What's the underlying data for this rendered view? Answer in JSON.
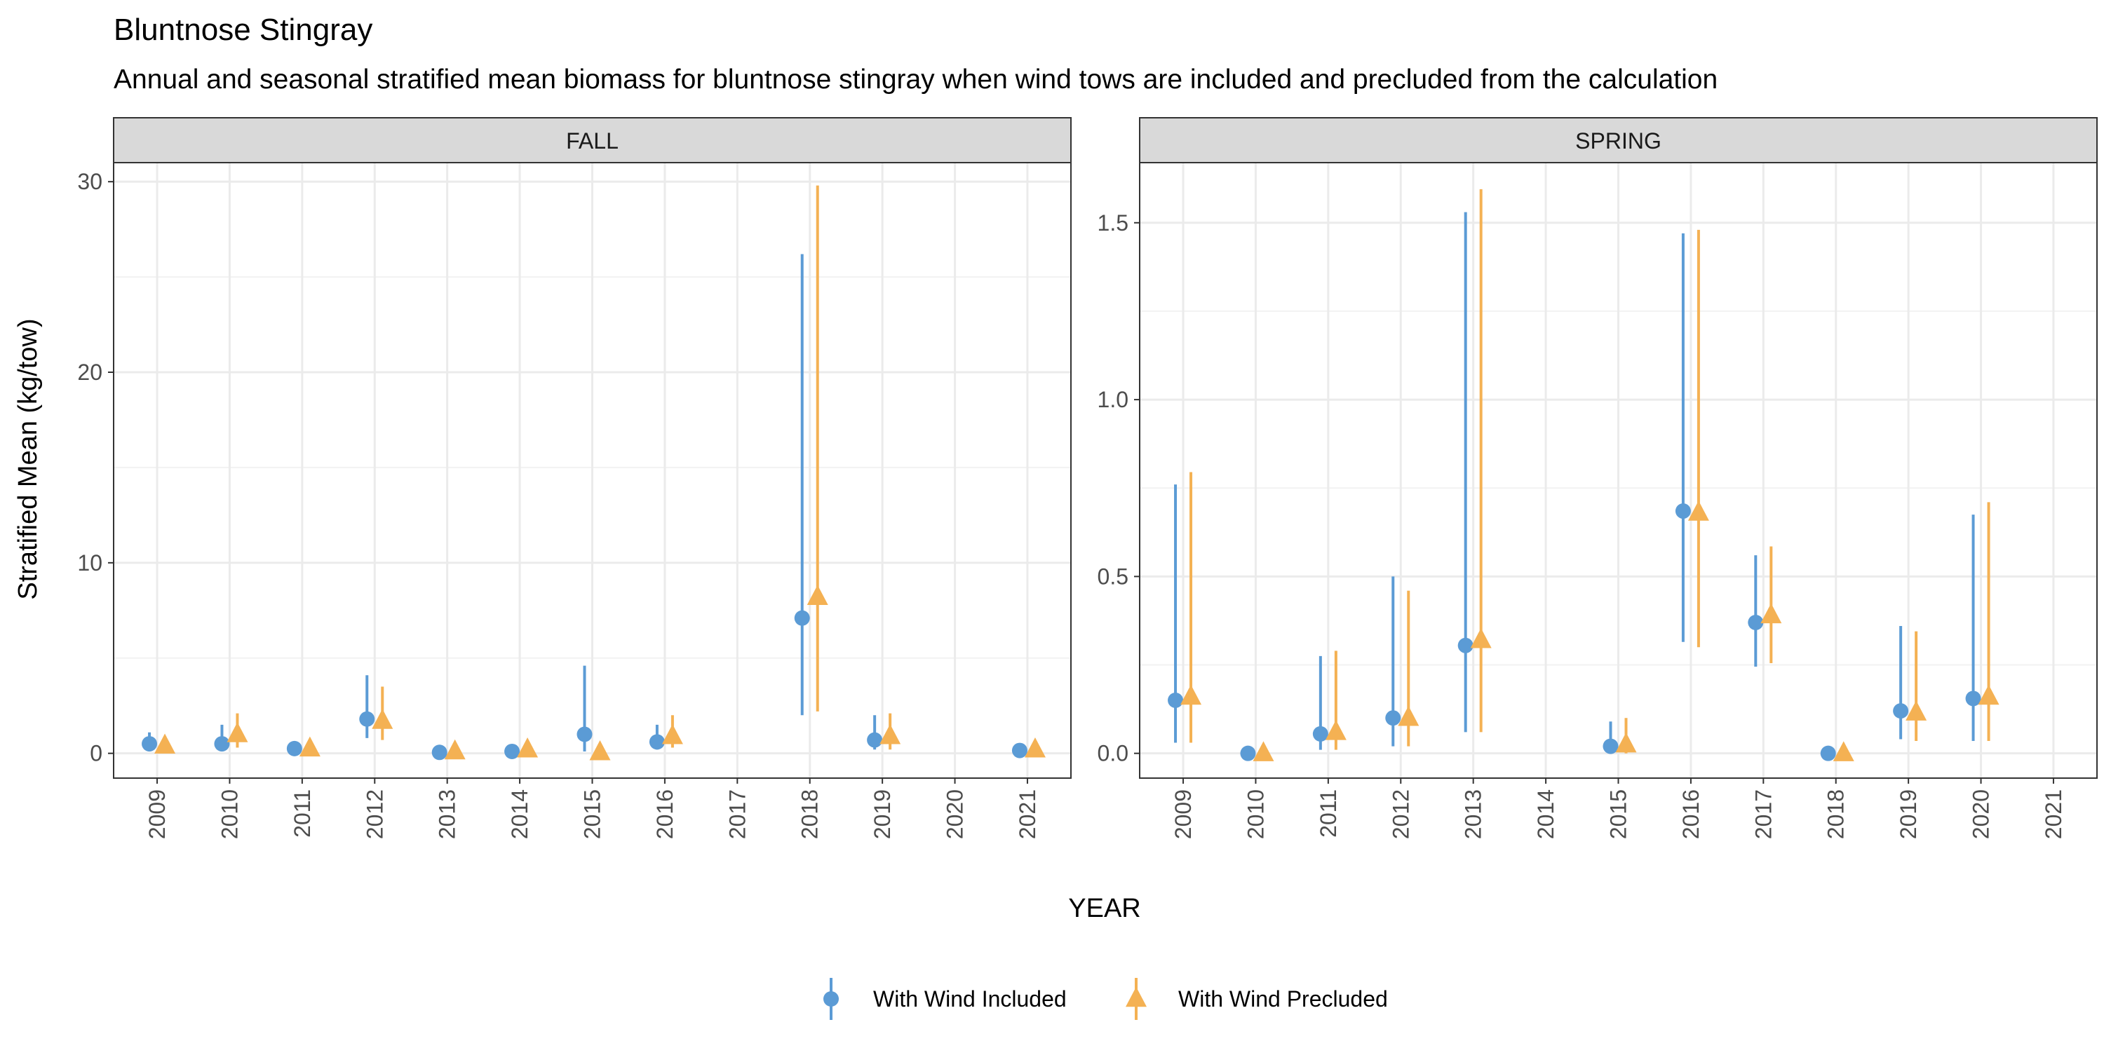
{
  "title": "Bluntnose Stingray",
  "subtitle": "Annual and seasonal stratified mean biomass for bluntnose stingray when wind tows are included and precluded from the calculation",
  "xlabel": "YEAR",
  "ylabel": "Stratified Mean (kg/tow)",
  "colors": {
    "included": "#5B9BD5",
    "precluded": "#F4B153",
    "strip_bg": "#D9D9D9",
    "grid": "#EBEBEB"
  },
  "legend": {
    "position": "bottom",
    "items": [
      {
        "label": "With Wind Included",
        "shape": "circle",
        "color": "#5B9BD5"
      },
      {
        "label": "With Wind Precluded",
        "shape": "triangle",
        "color": "#F4B153"
      }
    ]
  },
  "chart_data": {
    "type": "scatter",
    "years": [
      "2009",
      "2010",
      "2011",
      "2012",
      "2013",
      "2014",
      "2015",
      "2016",
      "2017",
      "2018",
      "2019",
      "2020",
      "2021"
    ],
    "panels": [
      {
        "strip": "FALL",
        "ylim": [
          -1.3,
          31.0
        ],
        "yticks": [
          0,
          10,
          20,
          30
        ],
        "series": [
          {
            "name": "With Wind Included",
            "points": [
              {
                "x": "2009",
                "y": 0.5,
                "lo": 0.1,
                "hi": 1.1
              },
              {
                "x": "2010",
                "y": 0.5,
                "lo": 0.1,
                "hi": 1.5
              },
              {
                "x": "2011",
                "y": 0.25,
                "lo": 0.1,
                "hi": 0.4
              },
              {
                "x": "2012",
                "y": 1.8,
                "lo": 0.8,
                "hi": 4.1
              },
              {
                "x": "2013",
                "y": 0.05,
                "lo": 0.0,
                "hi": 0.1
              },
              {
                "x": "2014",
                "y": 0.1,
                "lo": 0.0,
                "hi": 0.3
              },
              {
                "x": "2015",
                "y": 1.0,
                "lo": 0.1,
                "hi": 4.6
              },
              {
                "x": "2016",
                "y": 0.6,
                "lo": 0.2,
                "hi": 1.5
              },
              {
                "x": "2018",
                "y": 7.1,
                "lo": 2.0,
                "hi": 26.2
              },
              {
                "x": "2019",
                "y": 0.7,
                "lo": 0.2,
                "hi": 2.0
              },
              {
                "x": "2021",
                "y": 0.15,
                "lo": 0.05,
                "hi": 0.3
              }
            ]
          },
          {
            "name": "With Wind Precluded",
            "points": [
              {
                "x": "2009",
                "y": 0.4,
                "lo": 0.1,
                "hi": 0.9
              },
              {
                "x": "2010",
                "y": 1.0,
                "lo": 0.3,
                "hi": 2.1
              },
              {
                "x": "2011",
                "y": 0.25,
                "lo": 0.1,
                "hi": 0.4
              },
              {
                "x": "2012",
                "y": 1.7,
                "lo": 0.7,
                "hi": 3.5
              },
              {
                "x": "2013",
                "y": 0.1,
                "lo": 0.0,
                "hi": 0.2
              },
              {
                "x": "2014",
                "y": 0.2,
                "lo": 0.0,
                "hi": 0.4
              },
              {
                "x": "2015",
                "y": 0.05,
                "lo": 0.0,
                "hi": 0.2
              },
              {
                "x": "2016",
                "y": 0.9,
                "lo": 0.3,
                "hi": 2.0
              },
              {
                "x": "2018",
                "y": 8.2,
                "lo": 2.2,
                "hi": 29.8
              },
              {
                "x": "2019",
                "y": 0.9,
                "lo": 0.2,
                "hi": 2.1
              },
              {
                "x": "2021",
                "y": 0.2,
                "lo": 0.05,
                "hi": 0.4
              }
            ]
          }
        ]
      },
      {
        "strip": "SPRING",
        "ylim": [
          -0.07,
          1.67
        ],
        "yticks": [
          0.0,
          0.5,
          1.0,
          1.5
        ],
        "ytick_labels": [
          "0.0",
          "0.5",
          "1.0",
          "1.5"
        ],
        "series": [
          {
            "name": "With Wind Included",
            "points": [
              {
                "x": "2009",
                "y": 0.15,
                "lo": 0.03,
                "hi": 0.76
              },
              {
                "x": "2010",
                "y": 0.0,
                "lo": 0.0,
                "hi": 0.01
              },
              {
                "x": "2011",
                "y": 0.055,
                "lo": 0.01,
                "hi": 0.275
              },
              {
                "x": "2012",
                "y": 0.1,
                "lo": 0.02,
                "hi": 0.5
              },
              {
                "x": "2013",
                "y": 0.305,
                "lo": 0.06,
                "hi": 1.53
              },
              {
                "x": "2015",
                "y": 0.02,
                "lo": 0.0,
                "hi": 0.09
              },
              {
                "x": "2016",
                "y": 0.685,
                "lo": 0.315,
                "hi": 1.47
              },
              {
                "x": "2017",
                "y": 0.37,
                "lo": 0.245,
                "hi": 0.56
              },
              {
                "x": "2018",
                "y": 0.0,
                "lo": 0.0,
                "hi": 0.01
              },
              {
                "x": "2019",
                "y": 0.12,
                "lo": 0.04,
                "hi": 0.36
              },
              {
                "x": "2020",
                "y": 0.155,
                "lo": 0.035,
                "hi": 0.675
              }
            ]
          },
          {
            "name": "With Wind Precluded",
            "points": [
              {
                "x": "2009",
                "y": 0.16,
                "lo": 0.03,
                "hi": 0.795
              },
              {
                "x": "2010",
                "y": 0.0,
                "lo": 0.0,
                "hi": 0.01
              },
              {
                "x": "2011",
                "y": 0.06,
                "lo": 0.01,
                "hi": 0.29
              },
              {
                "x": "2012",
                "y": 0.1,
                "lo": 0.02,
                "hi": 0.46
              },
              {
                "x": "2013",
                "y": 0.32,
                "lo": 0.06,
                "hi": 1.595
              },
              {
                "x": "2015",
                "y": 0.025,
                "lo": 0.0,
                "hi": 0.1
              },
              {
                "x": "2016",
                "y": 0.68,
                "lo": 0.3,
                "hi": 1.48
              },
              {
                "x": "2017",
                "y": 0.39,
                "lo": 0.255,
                "hi": 0.585
              },
              {
                "x": "2018",
                "y": 0.0,
                "lo": 0.0,
                "hi": 0.01
              },
              {
                "x": "2019",
                "y": 0.115,
                "lo": 0.035,
                "hi": 0.345
              },
              {
                "x": "2020",
                "y": 0.16,
                "lo": 0.035,
                "hi": 0.71
              }
            ]
          }
        ]
      }
    ]
  }
}
